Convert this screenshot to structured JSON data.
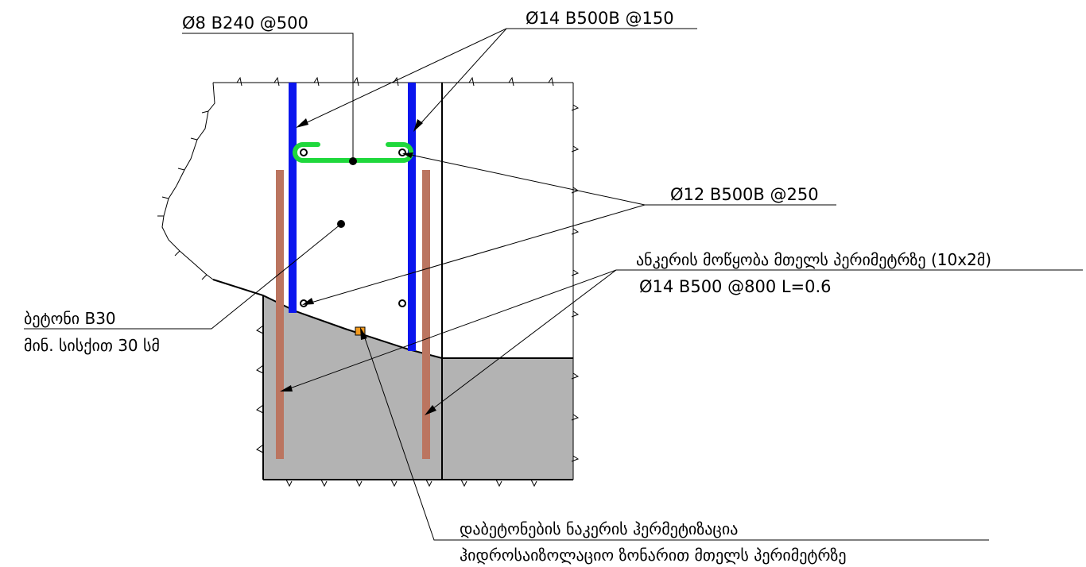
{
  "labels": {
    "stirrup": "Ø8 B240 @500",
    "vertical_bar": "Ø14 B500B @150",
    "horizontal_bar": "Ø12 B500B @250",
    "anchor_line1": "ანკერის მოწყობა მთელს პერიმეტრზე (10x2მ)",
    "anchor_line2": "Ø14 B500 @800 L=0.6",
    "concrete_line1": "ბეტონი B30",
    "concrete_line2": "მინ. სისქით 30 სმ",
    "joint_line1": "დაბეტონების ნაკერის ჰერმეტიზაცია",
    "joint_line2": "ჰიდროსაიზოლაციო ზონარით მთელს პერიმეტრზე"
  },
  "colors": {
    "existing_concrete": "#b3b3b3",
    "vertical_rebar": "#0b16ee",
    "stirrup": "#1fd83c",
    "anchor": "#bb7560",
    "waterstop": "#f39a1d",
    "line": "#000000"
  }
}
